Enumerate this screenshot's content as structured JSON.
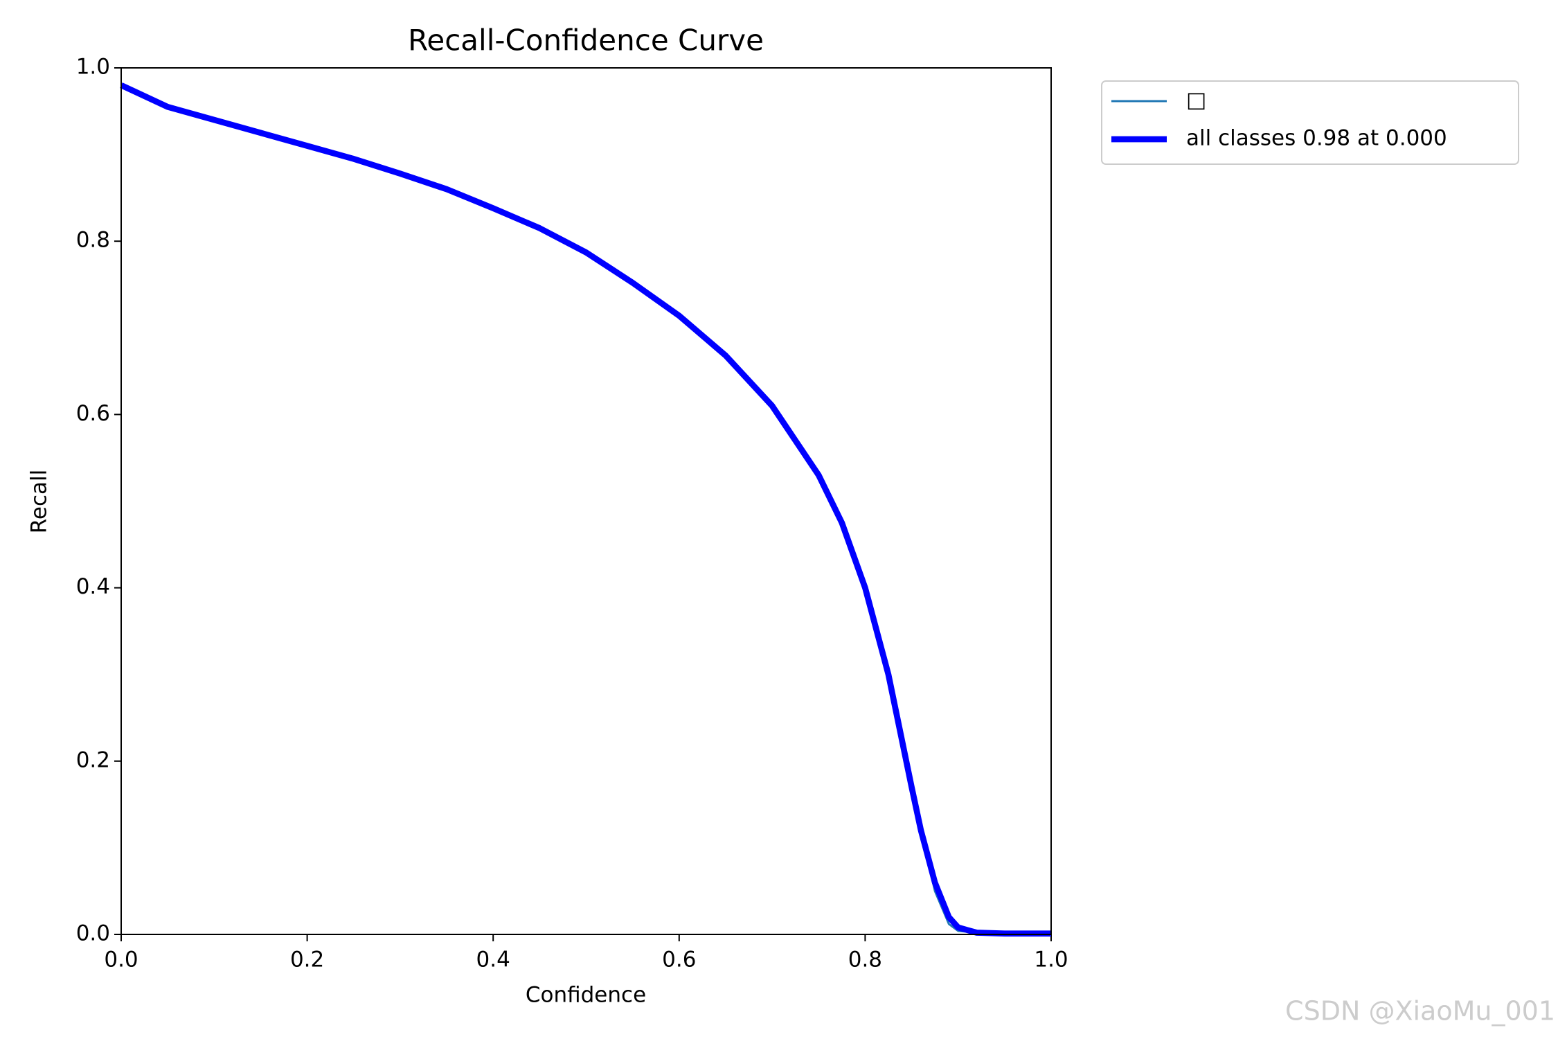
{
  "chart_data": {
    "type": "line",
    "title": "Recall-Confidence Curve",
    "x_label": "Confidence",
    "y_label": "Recall",
    "x": [
      0,
      0.05,
      0.1,
      0.15,
      0.2,
      0.25,
      0.3,
      0.35,
      0.4,
      0.45,
      0.5,
      0.55,
      0.6,
      0.65,
      0.7,
      0.75,
      0.775,
      0.8,
      0.825,
      0.85,
      0.86,
      0.875,
      0.89,
      0.9,
      0.92,
      0.95,
      1.0
    ],
    "series": [
      {
        "name": "□",
        "color": "#1f77b4",
        "width": 1,
        "values": [
          0.98,
          0.955,
          0.94,
          0.925,
          0.91,
          0.895,
          0.878,
          0.86,
          0.838,
          0.815,
          0.787,
          0.752,
          0.714,
          0.668,
          0.61,
          0.53,
          0.475,
          0.4,
          0.3,
          0.17,
          0.12,
          0.05,
          0.012,
          0.004,
          0.002,
          0.001,
          0.001
        ]
      },
      {
        "name": "all classes 0.98 at 0.000",
        "color": "#0000ff",
        "width": 3,
        "values": [
          0.98,
          0.955,
          0.94,
          0.925,
          0.91,
          0.895,
          0.878,
          0.86,
          0.838,
          0.815,
          0.787,
          0.752,
          0.714,
          0.668,
          0.61,
          0.53,
          0.475,
          0.4,
          0.3,
          0.17,
          0.12,
          0.06,
          0.02,
          0.008,
          0.002,
          0.001,
          0.001
        ]
      }
    ],
    "xlim": [
      0,
      1
    ],
    "ylim": [
      0,
      1
    ],
    "xticks": [
      {
        "value": 0,
        "label": "0.0"
      },
      0.2,
      0.4,
      0.6,
      0.8,
      {
        "value": 1,
        "label": "1.0"
      }
    ],
    "yticks": [
      {
        "value": 0,
        "label": "0.0"
      },
      0.2,
      0.4,
      0.6,
      0.8,
      {
        "value": 1,
        "label": "1.0"
      }
    ],
    "legend": "outside-upper-right",
    "watermark": "CSDN @XiaoMu_001"
  }
}
